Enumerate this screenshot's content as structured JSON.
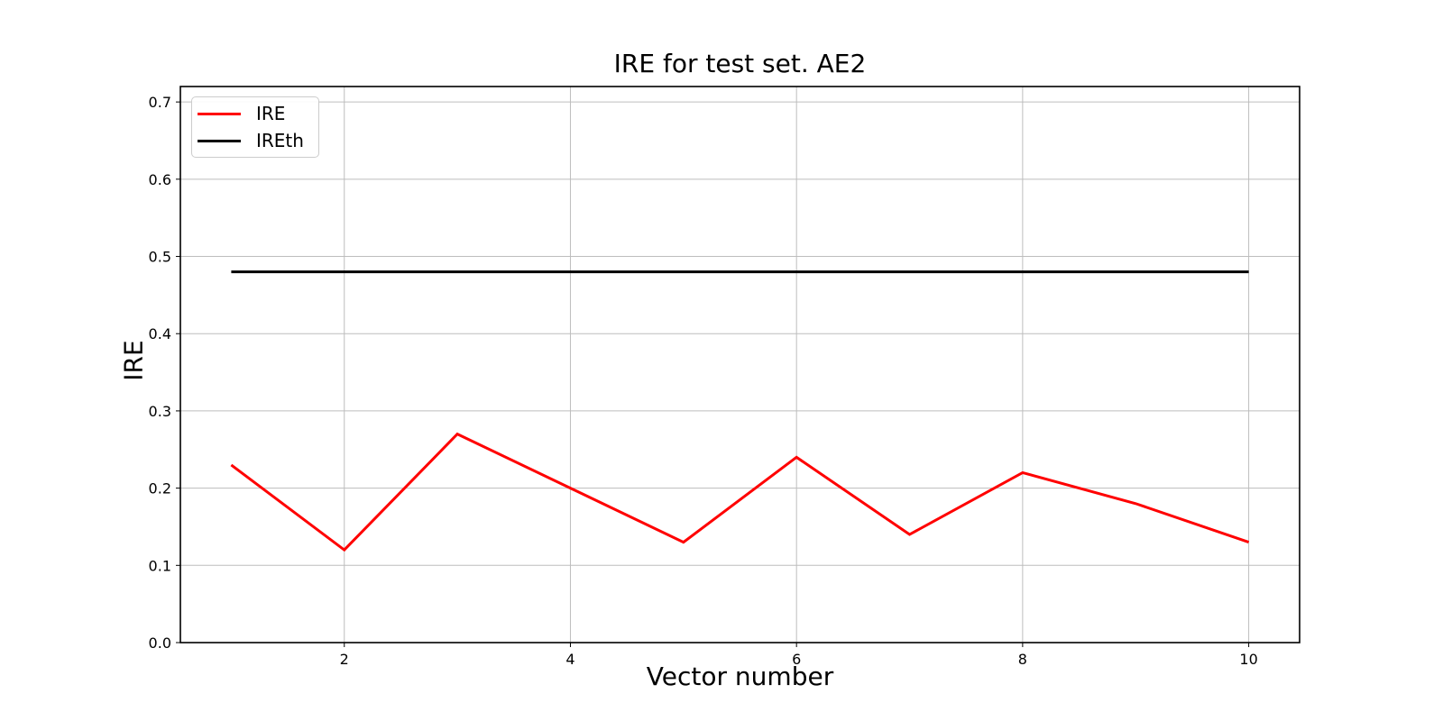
{
  "figure": {
    "title": "IRE for test set. AE2",
    "background_color": "#ffffff"
  },
  "chart_data": {
    "type": "line",
    "title": "IRE for test set. AE2",
    "xlabel": "Vector number",
    "ylabel": "IRE",
    "x": [
      1,
      2,
      3,
      4,
      5,
      6,
      7,
      8,
      9,
      10
    ],
    "series": [
      {
        "name": "IRE",
        "color": "#ff0000",
        "values": [
          0.23,
          0.12,
          0.27,
          0.2,
          0.13,
          0.24,
          0.14,
          0.22,
          0.18,
          0.13
        ]
      },
      {
        "name": "IREth",
        "color": "#000000",
        "values": [
          0.48,
          0.48,
          0.48,
          0.48,
          0.48,
          0.48,
          0.48,
          0.48,
          0.48,
          0.48
        ]
      }
    ],
    "xlim": [
      0.55,
      10.45
    ],
    "ylim": [
      0,
      0.72
    ],
    "xticks": [
      2,
      4,
      6,
      8,
      10
    ],
    "yticks": [
      0.0,
      0.1,
      0.2,
      0.3,
      0.4,
      0.5,
      0.6,
      0.7
    ],
    "ytick_label_format": "one_decimal",
    "grid": true,
    "grid_color": "#bdbdbd",
    "spine_color": "#000000",
    "legend_position": "upper left",
    "legend_entries": [
      "IRE",
      "IREth"
    ]
  }
}
